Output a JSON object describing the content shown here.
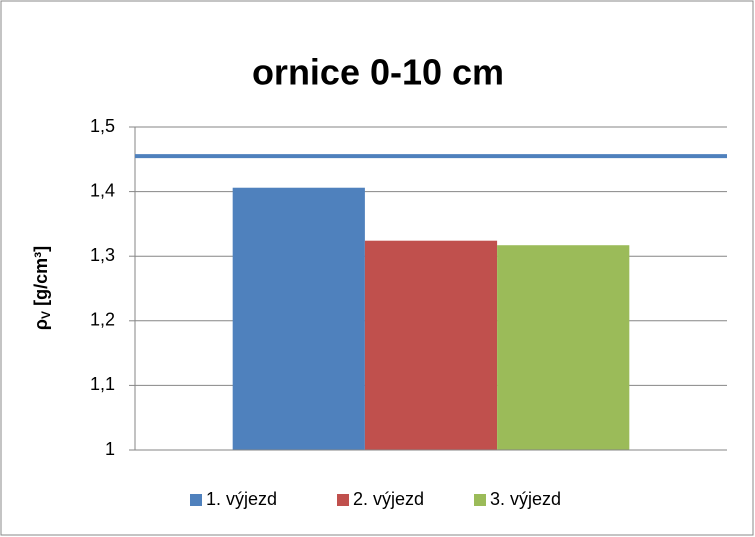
{
  "chart_data": {
    "type": "bar",
    "title": "ornice 0-10 cm",
    "ylabel": [
      "ρ",
      "V",
      " [g/cm³]"
    ],
    "categories": [
      null
    ],
    "series": [
      {
        "name": "1. výjezd",
        "color": "#4f81bd",
        "values": [
          1.406
        ]
      },
      {
        "name": "2. výjezd",
        "color": "#c0504d",
        "values": [
          1.324
        ]
      },
      {
        "name": "3. výjezd",
        "color": "#9bbb59",
        "values": [
          1.317
        ]
      }
    ],
    "reference_line": {
      "value": 1.455,
      "color": "#4f81bd"
    },
    "ylim": [
      1,
      1.5
    ],
    "yticks": [
      1,
      {
        "value": 1.1,
        "label": "1,1"
      },
      {
        "value": 1.2,
        "label": "1,2"
      },
      {
        "value": 1.3,
        "label": "1,3"
      },
      {
        "value": 1.4,
        "label": "1,4"
      },
      {
        "value": 1.5,
        "label": "1,5"
      }
    ],
    "grid": true,
    "legend": "bottom"
  }
}
